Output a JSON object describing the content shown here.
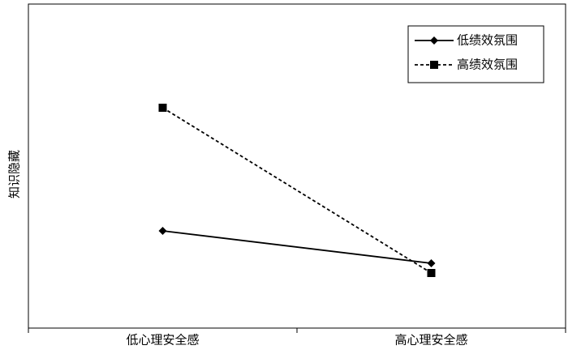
{
  "chart_data": {
    "type": "line",
    "y_label": "知识隐藏",
    "categories": [
      "低心理安全感",
      "高心理安全感"
    ],
    "series": [
      {
        "name": "低绩效氛围",
        "color": "#000000",
        "line_style": "solid",
        "marker": "diamond",
        "values": [
          30,
          20
        ]
      },
      {
        "name": "高绩效氛围",
        "color": "#000000",
        "line_style": "dashed",
        "marker": "square",
        "values": [
          68,
          17
        ]
      }
    ],
    "ylim": [
      0,
      100
    ],
    "legend": "top-right"
  }
}
